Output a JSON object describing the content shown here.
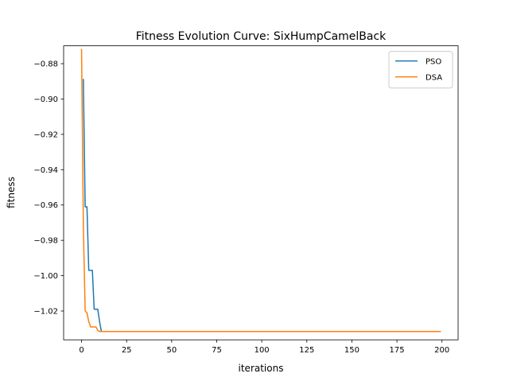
{
  "chart_data": {
    "type": "line",
    "title": "Fitness Evolution Curve: SixHumpCamelBack",
    "xlabel": "iterations",
    "ylabel": "fitness",
    "xlim": [
      -9.95,
      208.95
    ],
    "ylim": [
      -1.0363,
      -0.8699
    ],
    "xticks": [
      0,
      25,
      50,
      75,
      100,
      125,
      150,
      175,
      200
    ],
    "yticks": [
      -0.88,
      -0.9,
      -0.92,
      -0.94,
      -0.96,
      -0.98,
      -1.0,
      -1.02
    ],
    "ytick_labels": [
      "−0.88",
      "−0.90",
      "−0.92",
      "−0.94",
      "−0.96",
      "−0.98",
      "−1.00",
      "−1.02"
    ],
    "grid": false,
    "legend_position": "top-right",
    "series": [
      {
        "name": "PSO",
        "color": "#1f77b4",
        "x": [
          1,
          2,
          3,
          4,
          5,
          6,
          7,
          8,
          9,
          10,
          11,
          12,
          199
        ],
        "y": [
          -0.889,
          -0.961,
          -0.961,
          -0.997,
          -0.997,
          -0.997,
          -1.019,
          -1.019,
          -1.019,
          -1.026,
          -1.0316,
          -1.0316,
          -1.0316
        ]
      },
      {
        "name": "DSA",
        "color": "#ff7f0e",
        "x": [
          0,
          1,
          2,
          3,
          4,
          5,
          6,
          7,
          8,
          9,
          10,
          11,
          12,
          199
        ],
        "y": [
          -0.872,
          -0.972,
          -1.02,
          -1.021,
          -1.026,
          -1.029,
          -1.029,
          -1.029,
          -1.029,
          -1.031,
          -1.0316,
          -1.0316,
          -1.0316,
          -1.0316
        ]
      }
    ]
  }
}
